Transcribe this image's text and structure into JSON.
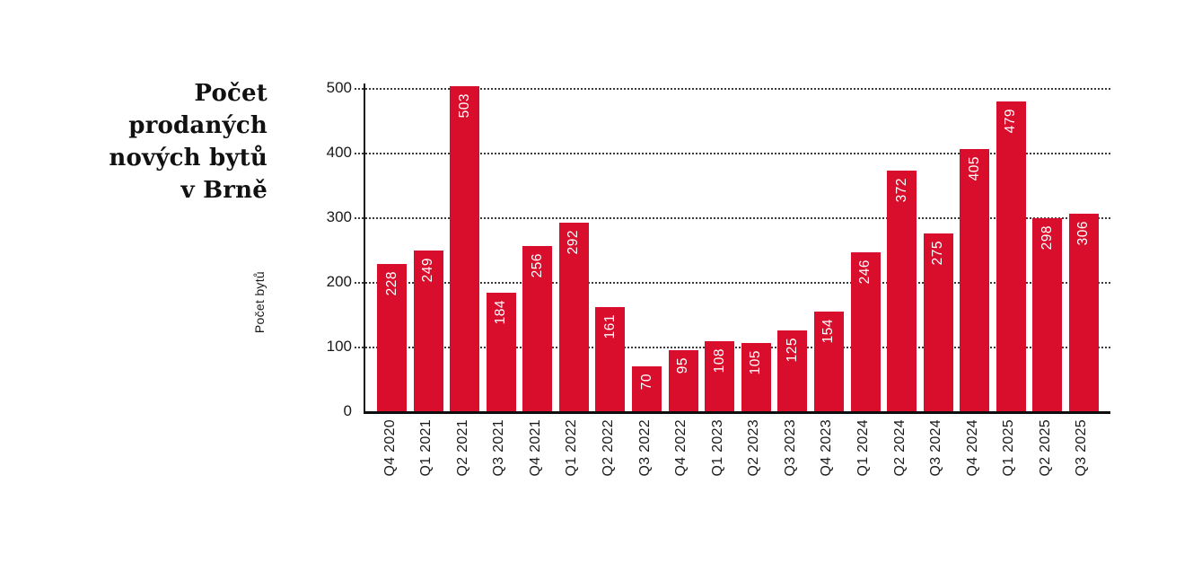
{
  "title": {
    "lines": [
      "Počet prodaných",
      "nových bytů",
      "v Brně"
    ]
  },
  "chart_data": {
    "type": "bar",
    "title": "Počet prodaných nových bytů v Brně",
    "xlabel": "",
    "ylabel": "Počet bytů",
    "categories": [
      "Q4 2020",
      "Q1 2021",
      "Q2 2021",
      "Q3 2021",
      "Q4 2021",
      "Q1 2022",
      "Q2 2022",
      "Q3 2022",
      "Q4 2022",
      "Q1 2023",
      "Q2 2023",
      "Q3 2023",
      "Q4 2023",
      "Q1 2024",
      "Q2 2024",
      "Q3 2024",
      "Q4 2024",
      "Q1 2025",
      "Q2 2025",
      "Q3 2025"
    ],
    "values": [
      228,
      249,
      503,
      184,
      256,
      292,
      161,
      70,
      95,
      108,
      105,
      125,
      154,
      246,
      372,
      275,
      405,
      479,
      298,
      306
    ],
    "yticks": [
      0,
      100,
      200,
      300,
      400,
      500
    ],
    "ylim": [
      0,
      500
    ],
    "grid": "horizontal-dotted",
    "legend": "none",
    "value_labels": "inside-top-rotated"
  },
  "colors": {
    "bar": "#d90e2c",
    "value_label": "#ffffff",
    "axis": "#0d0d0d",
    "gridline": "#3c3c3c",
    "title": "#111111",
    "background": "#ffffff"
  }
}
